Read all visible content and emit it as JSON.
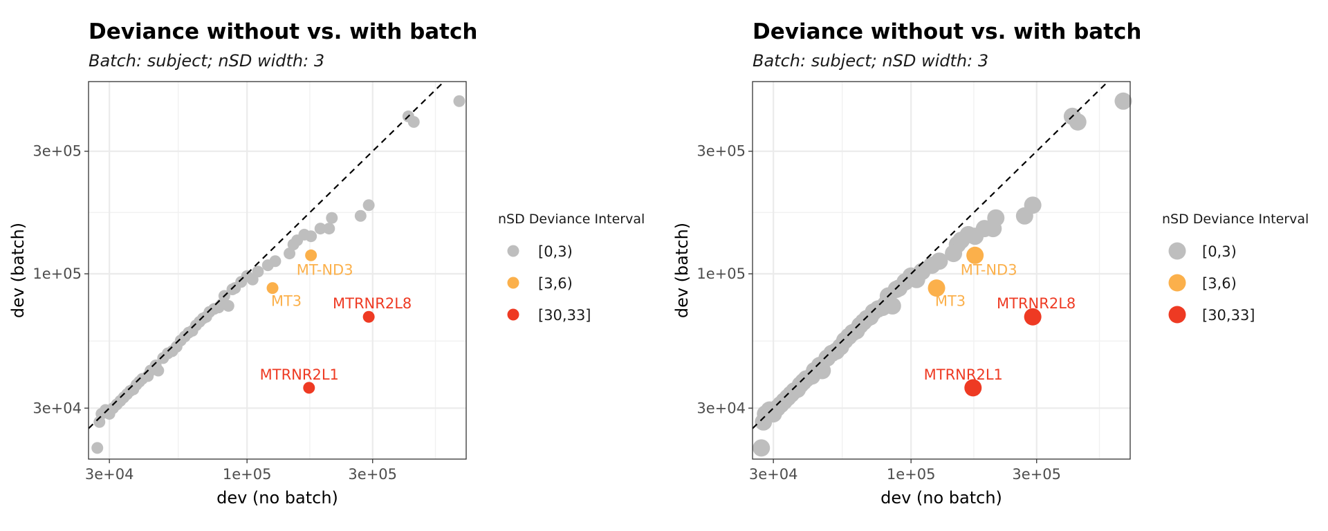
{
  "chart_data": [
    {
      "type": "scatter",
      "title": "Deviance without vs. with batch",
      "subtitle": "Batch: subject; nSD width: 3",
      "xlabel": "dev (no batch)",
      "ylabel": "dev (batch)",
      "x_scale": "log10",
      "y_scale": "log10",
      "xlim": [
        25000,
        680000
      ],
      "ylim": [
        19000,
        560000
      ],
      "x_ticks": [
        {
          "value": 30000,
          "label": "3e+04"
        },
        {
          "value": 100000,
          "label": "1e+05"
        },
        {
          "value": 300000,
          "label": "3e+05"
        }
      ],
      "y_ticks": [
        {
          "value": 30000,
          "label": "3e+04"
        },
        {
          "value": 100000,
          "label": "1e+05"
        },
        {
          "value": 300000,
          "label": "3e+05"
        }
      ],
      "grid": true,
      "reference_line": "y = x (dashed)",
      "legend": {
        "title": "nSD Deviance Interval",
        "position": "right",
        "entries": [
          {
            "label": "[0,3)",
            "color": "#bebebe"
          },
          {
            "label": "[3,6)",
            "color": "#fbb04b"
          },
          {
            "label": "[30,33]",
            "color": "#ee3a23"
          }
        ]
      },
      "point_size": "small",
      "series": [
        {
          "name": "[0,3)",
          "color": "#bebebe",
          "points": [
            [
              27000,
              21000
            ],
            [
              27500,
              26500
            ],
            [
              28000,
              28500
            ],
            [
              29000,
              29500
            ],
            [
              30000,
              28500
            ],
            [
              31000,
              30000
            ],
            [
              32000,
              31000
            ],
            [
              33000,
              32000
            ],
            [
              34000,
              33000
            ],
            [
              35000,
              34000
            ],
            [
              36000,
              35000
            ],
            [
              37000,
              35500
            ],
            [
              38000,
              37000
            ],
            [
              39000,
              38000
            ],
            [
              40000,
              39000
            ],
            [
              42000,
              40000
            ],
            [
              43000,
              42000
            ],
            [
              45000,
              44000
            ],
            [
              46000,
              42000
            ],
            [
              48000,
              47000
            ],
            [
              50000,
              49000
            ],
            [
              52000,
              50000
            ],
            [
              54000,
              52000
            ],
            [
              56000,
              55000
            ],
            [
              58000,
              57000
            ],
            [
              60000,
              59000
            ],
            [
              62000,
              60000
            ],
            [
              64000,
              63000
            ],
            [
              66000,
              65000
            ],
            [
              68000,
              67000
            ],
            [
              70000,
              68000
            ],
            [
              72000,
              71000
            ],
            [
              75000,
              73000
            ],
            [
              78000,
              74000
            ],
            [
              80000,
              76000
            ],
            [
              82000,
              82000
            ],
            [
              85000,
              75000
            ],
            [
              88000,
              87000
            ],
            [
              90000,
              88000
            ],
            [
              95000,
              93000
            ],
            [
              100000,
              98000
            ],
            [
              105000,
              95000
            ],
            [
              110000,
              102000
            ],
            [
              120000,
              108000
            ],
            [
              128000,
              112000
            ],
            [
              145000,
              120000
            ],
            [
              150000,
              130000
            ],
            [
              155000,
              135000
            ],
            [
              165000,
              142000
            ],
            [
              175000,
              140000
            ],
            [
              190000,
              150000
            ],
            [
              205000,
              150000
            ],
            [
              210000,
              165000
            ],
            [
              270000,
              168000
            ],
            [
              290000,
              185000
            ],
            [
              410000,
              410000
            ],
            [
              430000,
              390000
            ],
            [
              640000,
              470000
            ]
          ]
        },
        {
          "name": "[3,6)",
          "color": "#fbb04b",
          "points": [
            [
              125000,
              88000
            ],
            [
              175000,
              118000
            ]
          ]
        },
        {
          "name": "[30,33]",
          "color": "#ee3a23",
          "points": [
            [
              172000,
              36000
            ],
            [
              290000,
              68000
            ]
          ]
        }
      ],
      "annotations": [
        {
          "text": "MT-ND3",
          "x": 175000,
          "y": 118000,
          "color": "#fbb04b"
        },
        {
          "text": "MT3",
          "x": 125000,
          "y": 88000,
          "color": "#fbb04b"
        },
        {
          "text": "MTRNR2L8",
          "x": 290000,
          "y": 68000,
          "color": "#ee3a23"
        },
        {
          "text": "MTRNR2L1",
          "x": 172000,
          "y": 36000,
          "color": "#ee3a23"
        }
      ]
    },
    {
      "type": "scatter",
      "title": "Deviance without vs. with batch",
      "subtitle": "Batch: subject; nSD width: 3",
      "xlabel": "dev (no batch)",
      "ylabel": "dev (batch)",
      "x_scale": "log10",
      "y_scale": "log10",
      "xlim": [
        25000,
        680000
      ],
      "ylim": [
        19000,
        560000
      ],
      "x_ticks": [
        {
          "value": 30000,
          "label": "3e+04"
        },
        {
          "value": 100000,
          "label": "1e+05"
        },
        {
          "value": 300000,
          "label": "3e+05"
        }
      ],
      "y_ticks": [
        {
          "value": 30000,
          "label": "3e+04"
        },
        {
          "value": 100000,
          "label": "1e+05"
        },
        {
          "value": 300000,
          "label": "3e+05"
        }
      ],
      "grid": true,
      "reference_line": "y = x (dashed)",
      "legend": {
        "title": "nSD Deviance Interval",
        "position": "right",
        "entries": [
          {
            "label": "[0,3)",
            "color": "#bebebe"
          },
          {
            "label": "[3,6)",
            "color": "#fbb04b"
          },
          {
            "label": "[30,33]",
            "color": "#ee3a23"
          }
        ]
      },
      "point_size": "large",
      "series": [
        {
          "name": "[0,3)",
          "color": "#bebebe",
          "points": [
            [
              27000,
              21000
            ],
            [
              27500,
              26500
            ],
            [
              28000,
              28500
            ],
            [
              29000,
              29500
            ],
            [
              30000,
              28500
            ],
            [
              31000,
              30000
            ],
            [
              32000,
              31000
            ],
            [
              33000,
              32000
            ],
            [
              34000,
              33000
            ],
            [
              35000,
              34000
            ],
            [
              36000,
              35000
            ],
            [
              37000,
              35500
            ],
            [
              38000,
              37000
            ],
            [
              39000,
              38000
            ],
            [
              40000,
              39000
            ],
            [
              42000,
              40000
            ],
            [
              43000,
              42000
            ],
            [
              45000,
              44000
            ],
            [
              46000,
              42000
            ],
            [
              48000,
              47000
            ],
            [
              50000,
              49000
            ],
            [
              52000,
              50000
            ],
            [
              54000,
              52000
            ],
            [
              56000,
              55000
            ],
            [
              58000,
              57000
            ],
            [
              60000,
              59000
            ],
            [
              62000,
              60000
            ],
            [
              64000,
              63000
            ],
            [
              66000,
              65000
            ],
            [
              68000,
              67000
            ],
            [
              70000,
              68000
            ],
            [
              72000,
              71000
            ],
            [
              75000,
              73000
            ],
            [
              78000,
              74000
            ],
            [
              80000,
              76000
            ],
            [
              82000,
              82000
            ],
            [
              85000,
              75000
            ],
            [
              88000,
              87000
            ],
            [
              90000,
              88000
            ],
            [
              95000,
              93000
            ],
            [
              100000,
              98000
            ],
            [
              105000,
              95000
            ],
            [
              110000,
              102000
            ],
            [
              120000,
              108000
            ],
            [
              128000,
              112000
            ],
            [
              145000,
              120000
            ],
            [
              150000,
              130000
            ],
            [
              155000,
              135000
            ],
            [
              165000,
              142000
            ],
            [
              175000,
              140000
            ],
            [
              190000,
              150000
            ],
            [
              205000,
              150000
            ],
            [
              210000,
              165000
            ],
            [
              270000,
              168000
            ],
            [
              290000,
              185000
            ],
            [
              410000,
              410000
            ],
            [
              430000,
              390000
            ],
            [
              640000,
              470000
            ]
          ]
        },
        {
          "name": "[3,6)",
          "color": "#fbb04b",
          "points": [
            [
              125000,
              88000
            ],
            [
              175000,
              118000
            ]
          ]
        },
        {
          "name": "[30,33]",
          "color": "#ee3a23",
          "points": [
            [
              172000,
              36000
            ],
            [
              290000,
              68000
            ]
          ]
        }
      ],
      "annotations": [
        {
          "text": "MT-ND3",
          "x": 175000,
          "y": 118000,
          "color": "#fbb04b"
        },
        {
          "text": "MT3",
          "x": 125000,
          "y": 88000,
          "color": "#fbb04b"
        },
        {
          "text": "MTRNR2L8",
          "x": 290000,
          "y": 68000,
          "color": "#ee3a23"
        },
        {
          "text": "MTRNR2L1",
          "x": 172000,
          "y": 36000,
          "color": "#ee3a23"
        }
      ]
    }
  ]
}
